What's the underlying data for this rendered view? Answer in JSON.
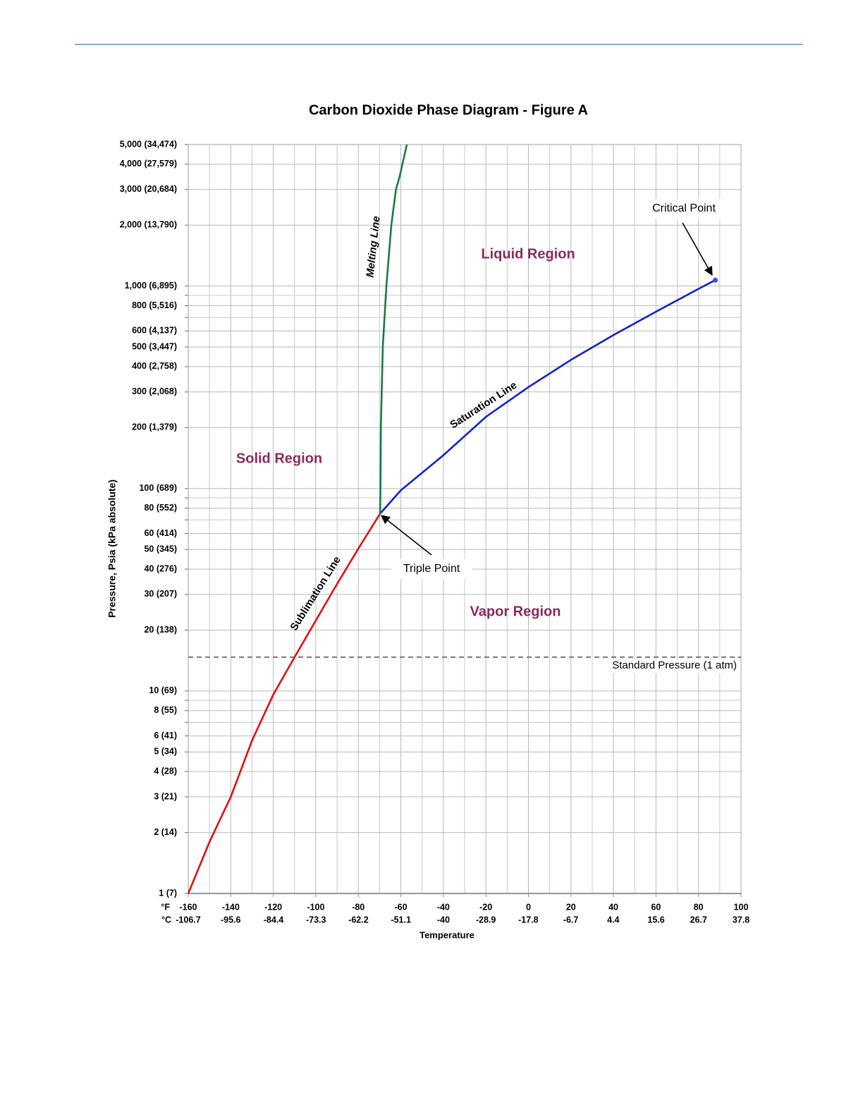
{
  "chart_data": {
    "type": "line",
    "title": "Carbon Dioxide Phase Diagram - Figure A",
    "xlabel": "Temperature",
    "ylabel": "Pressure, Psia (kPa absolute)",
    "x_unit": "°F",
    "x2_unit": "°C",
    "xlim": [
      -160,
      100
    ],
    "xticks": [
      -160,
      -140,
      -120,
      -100,
      -80,
      -60,
      -40,
      -20,
      0,
      20,
      40,
      60,
      80,
      100
    ],
    "x2lim": [
      -106.7,
      37.8
    ],
    "x2ticks": [
      -106.7,
      -95.6,
      -84.4,
      -73.3,
      -62.2,
      -51.1,
      -40,
      -28.9,
      -17.8,
      -6.7,
      4.4,
      15.6,
      26.7,
      37.8
    ],
    "ylim": [
      1,
      5000
    ],
    "yscale": "log",
    "yticks": [
      {
        "value": 1,
        "label": "1 (7)"
      },
      {
        "value": 2,
        "label": "2 (14)"
      },
      {
        "value": 3,
        "label": "3 (21)"
      },
      {
        "value": 4,
        "label": "4 (28)"
      },
      {
        "value": 5,
        "label": "5 (34)"
      },
      {
        "value": 6,
        "label": "6 (41)"
      },
      {
        "value": 8,
        "label": "8 (55)"
      },
      {
        "value": 10,
        "label": "10 (69)"
      },
      {
        "value": 20,
        "label": "20 (138)"
      },
      {
        "value": 30,
        "label": "30 (207)"
      },
      {
        "value": 40,
        "label": "40 (276)"
      },
      {
        "value": 50,
        "label": "50 (345)"
      },
      {
        "value": 60,
        "label": "60 (414)"
      },
      {
        "value": 80,
        "label": "80 (552)"
      },
      {
        "value": 100,
        "label": "100 (689)"
      },
      {
        "value": 200,
        "label": "200 (1,379)"
      },
      {
        "value": 300,
        "label": "300 (2,068)"
      },
      {
        "value": 400,
        "label": "400 (2,758)"
      },
      {
        "value": 500,
        "label": "500 (3,447)"
      },
      {
        "value": 600,
        "label": "600 (4,137)"
      },
      {
        "value": 800,
        "label": "800 (5,516)"
      },
      {
        "value": 1000,
        "label": "1,000 (6,895)"
      },
      {
        "value": 2000,
        "label": "2,000 (13,790)"
      },
      {
        "value": 3000,
        "label": "3,000 (20,684)"
      },
      {
        "value": 4000,
        "label": "4,000 (27,579)"
      },
      {
        "value": 5000,
        "label": "5,000 (34,474)"
      }
    ],
    "minor_yticks": [
      7,
      9,
      70,
      90,
      700,
      900
    ],
    "grid": true,
    "series": [
      {
        "name": "Sublimation Line",
        "color": "#e01010",
        "x": [
          -160,
          -150,
          -140,
          -130,
          -120,
          -110,
          -100,
          -90,
          -80,
          -69.8
        ],
        "values": [
          1,
          1.8,
          3,
          5.7,
          9.6,
          14.7,
          22.3,
          33.8,
          50.5,
          75.1
        ]
      },
      {
        "name": "Saturation Line",
        "color": "#1020d0",
        "x": [
          -69.8,
          -60,
          -40,
          -20,
          0,
          20,
          40,
          60,
          80,
          87.9
        ],
        "values": [
          75.1,
          98,
          146,
          226,
          317,
          432,
          573,
          747,
          969,
          1070
        ]
      },
      {
        "name": "Melting Line",
        "color": "#1a7a40",
        "x": [
          -69.8,
          -69.6,
          -69.4,
          -68.5,
          -66.8,
          -64.5,
          -62.3,
          -60.5,
          -57.2
        ],
        "values": [
          75.1,
          100,
          200,
          500,
          1000,
          2000,
          3000,
          3500,
          5000
        ]
      }
    ],
    "reference_lines": [
      {
        "value": 14.7,
        "label": "Standard Pressure (1 atm)"
      }
    ],
    "region_labels": [
      "Liquid Region",
      "Solid Region",
      "Vapor Region"
    ],
    "annotations": [
      "Critical Point",
      "Triple Point"
    ]
  }
}
